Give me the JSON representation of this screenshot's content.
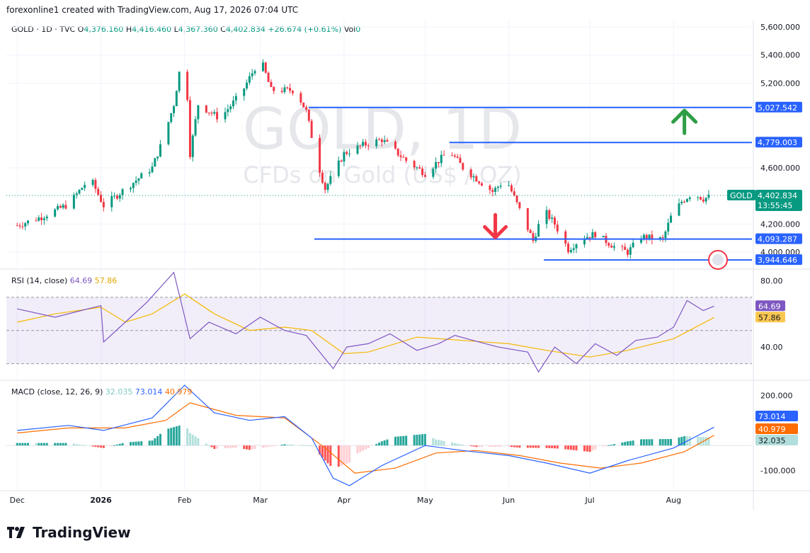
{
  "header": {
    "text": "forexonline1 created with TradingView.com, Aug 17, 2026 07:04 UTC"
  },
  "ohlc": {
    "symbol": "GOLD · 1D · TVC",
    "o_label": "O",
    "o": "4,376.160",
    "h_label": "H",
    "h": "4,416.460",
    "l_label": "L",
    "l": "4,367.360",
    "c_label": "C",
    "c": "4,402.834",
    "chg": "+26.674 (+0.61%)",
    "vol": "Vol",
    "vol_value": "0"
  },
  "watermark": {
    "line1": "GOLD, 1D",
    "line2": "CFDs on Gold (US$ / OZ)"
  },
  "colors": {
    "up": "#089981",
    "down": "#f23645",
    "level": "#2962ff",
    "rsi": "#7e57c2",
    "rsi_ma": "#f9c74f",
    "macd": "#2962ff",
    "signal": "#ff6d00"
  },
  "chart_data": [
    {
      "type": "candlestick",
      "title": "GOLD, 1D",
      "x_labels": [
        "Dec",
        "2026",
        "Feb",
        "Mar",
        "Apr",
        "May",
        "Jun",
        "Jul",
        "Aug"
      ],
      "y_ticks": [
        "5,600.000",
        "5,400.000",
        "5,200.000",
        "4,600.000",
        "4,200.000",
        "4,000.000"
      ],
      "ylim": [
        3880,
        5650
      ],
      "price_path": [
        [
          "2025-12-01",
          4190
        ],
        [
          "2025-12-10",
          4250
        ],
        [
          "2025-12-20",
          4340
        ],
        [
          "2025-12-28",
          4530
        ],
        [
          "2026-01-02",
          4330
        ],
        [
          "2026-01-12",
          4480
        ],
        [
          "2026-01-20",
          4600
        ],
        [
          "2026-01-24",
          4800
        ],
        [
          "2026-01-28",
          5050
        ],
        [
          "2026-02-01",
          5500
        ],
        [
          "2026-02-03",
          4700
        ],
        [
          "2026-02-06",
          5050
        ],
        [
          "2026-02-14",
          4950
        ],
        [
          "2026-02-22",
          5130
        ],
        [
          "2026-03-01",
          5380
        ],
        [
          "2026-03-05",
          5150
        ],
        [
          "2026-03-14",
          5150
        ],
        [
          "2026-03-18",
          5000
        ],
        [
          "2026-03-22",
          4650
        ],
        [
          "2026-03-25",
          4450
        ],
        [
          "2026-04-01",
          4700
        ],
        [
          "2026-04-08",
          4760
        ],
        [
          "2026-04-15",
          4800
        ],
        [
          "2026-04-24",
          4650
        ],
        [
          "2026-05-01",
          4560
        ],
        [
          "2026-05-10",
          4720
        ],
        [
          "2026-05-15",
          4600
        ],
        [
          "2026-05-26",
          4430
        ],
        [
          "2026-05-31",
          4520
        ],
        [
          "2026-06-05",
          4300
        ],
        [
          "2026-06-10",
          4080
        ],
        [
          "2026-06-14",
          4300
        ],
        [
          "2026-06-18",
          4200
        ],
        [
          "2026-06-23",
          4020
        ],
        [
          "2026-06-28",
          4100
        ],
        [
          "2026-07-03",
          4130
        ],
        [
          "2026-07-10",
          4040
        ],
        [
          "2026-07-15",
          4000
        ],
        [
          "2026-07-20",
          4110
        ],
        [
          "2026-07-28",
          4090
        ],
        [
          "2026-07-31",
          4250
        ],
        [
          "2026-08-04",
          4360
        ],
        [
          "2026-08-08",
          4420
        ],
        [
          "2026-08-12",
          4380
        ],
        [
          "2026-08-16",
          4402.834
        ]
      ],
      "levels": [
        {
          "value": 5027.542,
          "label": "5,027.542",
          "from": "2026-03-19"
        },
        {
          "value": 4779.003,
          "label": "4,779.003",
          "from": "2026-05-10"
        },
        {
          "value": 4093.287,
          "label": "4,093.287",
          "from": "2026-03-21"
        },
        {
          "value": 3944.646,
          "label": "3,944.646",
          "from": "2026-06-14"
        }
      ],
      "last_price": {
        "symbol": "GOLD",
        "value": 4402.834,
        "label": "4,402.834",
        "countdown": "13:55:45"
      },
      "annotations": [
        {
          "type": "arrow-up",
          "at": "2026-08-05",
          "value": 4930
        },
        {
          "type": "arrow-down",
          "at": "2026-05-27",
          "value": 4180
        }
      ]
    },
    {
      "type": "line",
      "title": "RSI (14, close)",
      "values_label": [
        "64.69",
        "57.86"
      ],
      "y_ticks": [
        "80.00",
        "40.00"
      ],
      "bands": [
        70,
        50,
        30
      ],
      "ylim": [
        20,
        87
      ],
      "series": [
        {
          "name": "RSI",
          "value": "64.69",
          "path": [
            [
              "2025-12-01",
              63
            ],
            [
              "2025-12-15",
              58
            ],
            [
              "2026-01-01",
              65
            ],
            [
              "2026-01-02",
              43
            ],
            [
              "2026-01-12",
              58
            ],
            [
              "2026-01-18",
              67
            ],
            [
              "2026-01-28",
              85
            ],
            [
              "2026-02-03",
              45
            ],
            [
              "2026-02-10",
              55
            ],
            [
              "2026-02-20",
              48
            ],
            [
              "2026-03-01",
              58
            ],
            [
              "2026-03-10",
              50
            ],
            [
              "2026-03-18",
              47
            ],
            [
              "2026-03-28",
              27
            ],
            [
              "2026-04-02",
              40
            ],
            [
              "2026-04-10",
              42
            ],
            [
              "2026-04-18",
              48
            ],
            [
              "2026-04-28",
              38
            ],
            [
              "2026-05-06",
              42
            ],
            [
              "2026-05-12",
              47
            ],
            [
              "2026-05-21",
              43
            ],
            [
              "2026-05-28",
              40
            ],
            [
              "2026-06-08",
              37
            ],
            [
              "2026-06-12",
              25
            ],
            [
              "2026-06-18",
              40
            ],
            [
              "2026-06-26",
              30
            ],
            [
              "2026-07-03",
              42
            ],
            [
              "2026-07-11",
              35
            ],
            [
              "2026-07-18",
              44
            ],
            [
              "2026-07-26",
              46
            ],
            [
              "2026-08-01",
              52
            ],
            [
              "2026-08-06",
              68
            ],
            [
              "2026-08-12",
              62
            ],
            [
              "2026-08-16",
              64.69
            ]
          ]
        },
        {
          "name": "RSI-based MA",
          "value": "57.86",
          "path": [
            [
              "2025-12-01",
              55
            ],
            [
              "2025-12-15",
              60
            ],
            [
              "2026-01-01",
              64
            ],
            [
              "2026-01-10",
              55
            ],
            [
              "2026-01-20",
              60
            ],
            [
              "2026-02-01",
              72
            ],
            [
              "2026-02-12",
              60
            ],
            [
              "2026-02-25",
              50
            ],
            [
              "2026-03-10",
              52
            ],
            [
              "2026-03-20",
              50
            ],
            [
              "2026-04-01",
              36
            ],
            [
              "2026-04-10",
              37
            ],
            [
              "2026-04-28",
              46
            ],
            [
              "2026-05-15",
              44
            ],
            [
              "2026-06-01",
              42
            ],
            [
              "2026-06-15",
              38
            ],
            [
              "2026-07-01",
              34
            ],
            [
              "2026-07-15",
              38
            ],
            [
              "2026-08-01",
              45
            ],
            [
              "2026-08-16",
              57.86
            ]
          ]
        }
      ]
    },
    {
      "type": "bar+line",
      "title": "MACD (close, 12, 26, 9)",
      "values_label": [
        "32.035",
        "73.014",
        "40.979"
      ],
      "y_ticks": [
        "200.000",
        "-100.000"
      ],
      "ylim": [
        -180,
        260
      ],
      "series": [
        {
          "name": "MACD",
          "value": "73.014",
          "path": [
            [
              "2025-12-01",
              60
            ],
            [
              "2025-12-20",
              80
            ],
            [
              "2026-01-02",
              60
            ],
            [
              "2026-01-20",
              110
            ],
            [
              "2026-02-01",
              240
            ],
            [
              "2026-02-12",
              130
            ],
            [
              "2026-02-25",
              100
            ],
            [
              "2026-03-10",
              115
            ],
            [
              "2026-03-20",
              30
            ],
            [
              "2026-03-28",
              -130
            ],
            [
              "2026-04-03",
              -160
            ],
            [
              "2026-04-15",
              -80
            ],
            [
              "2026-05-01",
              0
            ],
            [
              "2026-05-15",
              -20
            ],
            [
              "2026-06-01",
              -40
            ],
            [
              "2026-06-15",
              -70
            ],
            [
              "2026-07-01",
              -110
            ],
            [
              "2026-07-15",
              -60
            ],
            [
              "2026-08-01",
              -10
            ],
            [
              "2026-08-16",
              73.014
            ]
          ]
        },
        {
          "name": "Signal",
          "value": "40.979",
          "path": [
            [
              "2025-12-01",
              50
            ],
            [
              "2025-12-20",
              70
            ],
            [
              "2026-01-10",
              70
            ],
            [
              "2026-01-25",
              100
            ],
            [
              "2026-02-03",
              170
            ],
            [
              "2026-02-20",
              120
            ],
            [
              "2026-03-10",
              110
            ],
            [
              "2026-03-25",
              -10
            ],
            [
              "2026-04-05",
              -110
            ],
            [
              "2026-04-20",
              -90
            ],
            [
              "2026-05-05",
              -30
            ],
            [
              "2026-05-20",
              -20
            ],
            [
              "2026-06-05",
              -40
            ],
            [
              "2026-06-20",
              -70
            ],
            [
              "2026-07-05",
              -90
            ],
            [
              "2026-07-20",
              -70
            ],
            [
              "2026-08-05",
              -25
            ],
            [
              "2026-08-16",
              40.979
            ]
          ]
        },
        {
          "name": "Histogram",
          "value": "32.035"
        }
      ]
    }
  ]
}
